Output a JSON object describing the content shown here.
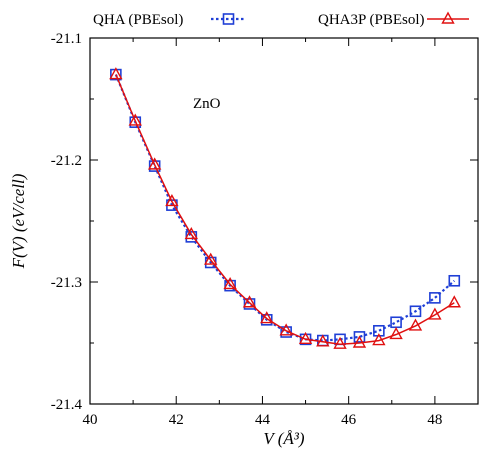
{
  "chart_data": {
    "type": "line",
    "title": "",
    "annotation": "ZnO",
    "xlabel": "V (Å³)",
    "ylabel": "F(V) (eV/cell)",
    "xlim": [
      40,
      49
    ],
    "ylim": [
      -21.4,
      -21.1
    ],
    "xticks": [
      40,
      42,
      44,
      46,
      48
    ],
    "xtick_labels": [
      "40",
      "42",
      "44",
      "46",
      "48"
    ],
    "yticks": [
      -21.4,
      -21.3,
      -21.2,
      -21.1
    ],
    "ytick_labels": [
      "-21.4",
      "-21.3",
      "-21.2",
      "-21.1"
    ],
    "grid": false,
    "legend_position": "top",
    "series": [
      {
        "name": "QHA (PBEsol)",
        "color": "#1f3fd6",
        "marker": "square",
        "line_style": "dotted",
        "x": [
          40.6,
          41.05,
          41.5,
          41.9,
          42.35,
          42.8,
          43.25,
          43.7,
          44.1,
          44.55,
          45.0,
          45.4,
          45.8,
          46.25,
          46.7,
          47.1,
          47.55,
          48.0,
          48.45
        ],
        "y": [
          -21.13,
          -21.169,
          -21.205,
          -21.237,
          -21.263,
          -21.284,
          -21.303,
          -21.318,
          -21.331,
          -21.341,
          -21.347,
          -21.348,
          -21.347,
          -21.345,
          -21.34,
          -21.333,
          -21.324,
          -21.313,
          -21.299
        ]
      },
      {
        "name": "QHA3P (PBEsol)",
        "color": "#e01010",
        "marker": "triangle",
        "line_style": "solid",
        "x": [
          40.6,
          41.05,
          41.5,
          41.9,
          42.35,
          42.8,
          43.25,
          43.7,
          44.1,
          44.55,
          45.0,
          45.4,
          45.8,
          46.25,
          46.7,
          47.1,
          47.55,
          48.0,
          48.45
        ],
        "y": [
          -21.13,
          -21.168,
          -21.204,
          -21.234,
          -21.261,
          -21.282,
          -21.302,
          -21.317,
          -21.33,
          -21.34,
          -21.347,
          -21.349,
          -21.351,
          -21.35,
          -21.348,
          -21.343,
          -21.336,
          -21.327,
          -21.317
        ]
      }
    ]
  }
}
